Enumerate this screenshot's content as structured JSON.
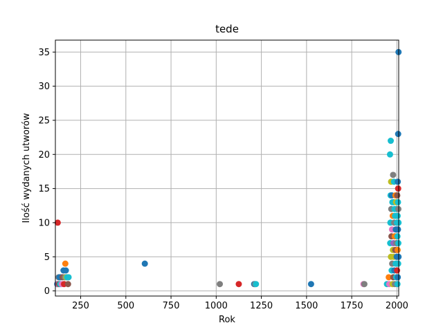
{
  "chart_data": {
    "type": "scatter",
    "title": "tede",
    "xlabel": "Rok",
    "ylabel": "Ilość wydanych utworów",
    "xlim": [
      110,
      2010
    ],
    "ylim": [
      -0.75,
      36.75
    ],
    "xticks": [
      250,
      500,
      750,
      1000,
      1250,
      1500,
      1750,
      2000
    ],
    "yticks": [
      0,
      5,
      10,
      15,
      20,
      25,
      30,
      35
    ],
    "grid": true,
    "legend": "none",
    "colors": {
      "blue": "#1f77b4",
      "orange": "#ff7f0e",
      "red": "#d62728",
      "brown": "#8c564b",
      "pink": "#e377c2",
      "gray": "#7f7f7f",
      "olive": "#bcbd22",
      "cyan": "#17becf",
      "purple": "#9467bd",
      "green": "#2ca02c"
    },
    "points": [
      {
        "x": 123,
        "y": 10,
        "c": "red"
      },
      {
        "x": 120,
        "y": 1,
        "c": "blue"
      },
      {
        "x": 124,
        "y": 1,
        "c": "pink"
      },
      {
        "x": 128,
        "y": 2,
        "c": "gray"
      },
      {
        "x": 130,
        "y": 1,
        "c": "brown"
      },
      {
        "x": 133,
        "y": 2,
        "c": "blue"
      },
      {
        "x": 137,
        "y": 1,
        "c": "cyan"
      },
      {
        "x": 140,
        "y": 2,
        "c": "blue"
      },
      {
        "x": 145,
        "y": 1,
        "c": "pink"
      },
      {
        "x": 150,
        "y": 2,
        "c": "brown"
      },
      {
        "x": 155,
        "y": 3,
        "c": "blue"
      },
      {
        "x": 158,
        "y": 1,
        "c": "red"
      },
      {
        "x": 162,
        "y": 2,
        "c": "gray"
      },
      {
        "x": 165,
        "y": 4,
        "c": "orange"
      },
      {
        "x": 168,
        "y": 3,
        "c": "blue"
      },
      {
        "x": 170,
        "y": 2,
        "c": "olive"
      },
      {
        "x": 175,
        "y": 2,
        "c": "cyan"
      },
      {
        "x": 180,
        "y": 1,
        "c": "brown"
      },
      {
        "x": 183,
        "y": 2,
        "c": "cyan"
      },
      {
        "x": 605,
        "y": 4,
        "c": "blue"
      },
      {
        "x": 1020,
        "y": 1,
        "c": "gray"
      },
      {
        "x": 1125,
        "y": 1,
        "c": "red"
      },
      {
        "x": 1210,
        "y": 1,
        "c": "blue"
      },
      {
        "x": 1215,
        "y": 1,
        "c": "gray"
      },
      {
        "x": 1220,
        "y": 1,
        "c": "cyan"
      },
      {
        "x": 1525,
        "y": 1,
        "c": "blue"
      },
      {
        "x": 1815,
        "y": 1,
        "c": "pink"
      },
      {
        "x": 1820,
        "y": 1,
        "c": "gray"
      },
      {
        "x": 1945,
        "y": 1,
        "c": "cyan"
      },
      {
        "x": 1955,
        "y": 2,
        "c": "orange"
      },
      {
        "x": 1958,
        "y": 1,
        "c": "pink"
      },
      {
        "x": 1962,
        "y": 20,
        "c": "cyan"
      },
      {
        "x": 1963,
        "y": 7,
        "c": "cyan"
      },
      {
        "x": 1964,
        "y": 10,
        "c": "cyan"
      },
      {
        "x": 1965,
        "y": 14,
        "c": "cyan"
      },
      {
        "x": 1966,
        "y": 22,
        "c": "cyan"
      },
      {
        "x": 1967,
        "y": 5,
        "c": "olive"
      },
      {
        "x": 1968,
        "y": 16,
        "c": "olive"
      },
      {
        "x": 1969,
        "y": 12,
        "c": "gray"
      },
      {
        "x": 1970,
        "y": 8,
        "c": "brown"
      },
      {
        "x": 1971,
        "y": 3,
        "c": "cyan"
      },
      {
        "x": 1972,
        "y": 14,
        "c": "blue"
      },
      {
        "x": 1973,
        "y": 9,
        "c": "pink"
      },
      {
        "x": 1974,
        "y": 4,
        "c": "gray"
      },
      {
        "x": 1975,
        "y": 13,
        "c": "cyan"
      },
      {
        "x": 1976,
        "y": 1,
        "c": "olive"
      },
      {
        "x": 1977,
        "y": 11,
        "c": "orange"
      },
      {
        "x": 1978,
        "y": 6,
        "c": "olive"
      },
      {
        "x": 1979,
        "y": 17,
        "c": "gray"
      },
      {
        "x": 1980,
        "y": 2,
        "c": "brown"
      },
      {
        "x": 1981,
        "y": 7,
        "c": "purple"
      },
      {
        "x": 1982,
        "y": 13,
        "c": "cyan"
      },
      {
        "x": 1983,
        "y": 5,
        "c": "olive"
      },
      {
        "x": 1984,
        "y": 16,
        "c": "cyan"
      },
      {
        "x": 1985,
        "y": 10,
        "c": "gray"
      },
      {
        "x": 1986,
        "y": 3,
        "c": "blue"
      },
      {
        "x": 1987,
        "y": 12,
        "c": "cyan"
      },
      {
        "x": 1988,
        "y": 8,
        "c": "orange"
      },
      {
        "x": 1989,
        "y": 1,
        "c": "gray"
      },
      {
        "x": 1990,
        "y": 11,
        "c": "cyan"
      },
      {
        "x": 1991,
        "y": 6,
        "c": "brown"
      },
      {
        "x": 1992,
        "y": 14,
        "c": "orange"
      },
      {
        "x": 1993,
        "y": 4,
        "c": "cyan"
      },
      {
        "x": 1994,
        "y": 9,
        "c": "blue"
      },
      {
        "x": 1995,
        "y": 13,
        "c": "olive"
      },
      {
        "x": 1996,
        "y": 2,
        "c": "cyan"
      },
      {
        "x": 1997,
        "y": 7,
        "c": "gray"
      },
      {
        "x": 1998,
        "y": 12,
        "c": "cyan"
      },
      {
        "x": 1999,
        "y": 5,
        "c": "blue"
      },
      {
        "x": 2000,
        "y": 10,
        "c": "cyan"
      },
      {
        "x": 2001,
        "y": 3,
        "c": "red"
      },
      {
        "x": 2002,
        "y": 14,
        "c": "brown"
      },
      {
        "x": 2003,
        "y": 8,
        "c": "cyan"
      },
      {
        "x": 2003,
        "y": 1,
        "c": "cyan"
      },
      {
        "x": 2004,
        "y": 6,
        "c": "orange"
      },
      {
        "x": 2004,
        "y": 11,
        "c": "cyan"
      },
      {
        "x": 2005,
        "y": 16,
        "c": "blue"
      },
      {
        "x": 2005,
        "y": 2,
        "c": "blue"
      },
      {
        "x": 2006,
        "y": 9,
        "c": "blue"
      },
      {
        "x": 2006,
        "y": 13,
        "c": "cyan"
      },
      {
        "x": 2007,
        "y": 15,
        "c": "red"
      },
      {
        "x": 2007,
        "y": 4,
        "c": "cyan"
      },
      {
        "x": 2007,
        "y": 23,
        "c": "blue"
      },
      {
        "x": 2008,
        "y": 12,
        "c": "gray"
      },
      {
        "x": 2008,
        "y": 7,
        "c": "cyan"
      },
      {
        "x": 2009,
        "y": 35,
        "c": "blue"
      },
      {
        "x": 2009,
        "y": 5,
        "c": "blue"
      },
      {
        "x": 2009,
        "y": 10,
        "c": "cyan"
      }
    ]
  }
}
